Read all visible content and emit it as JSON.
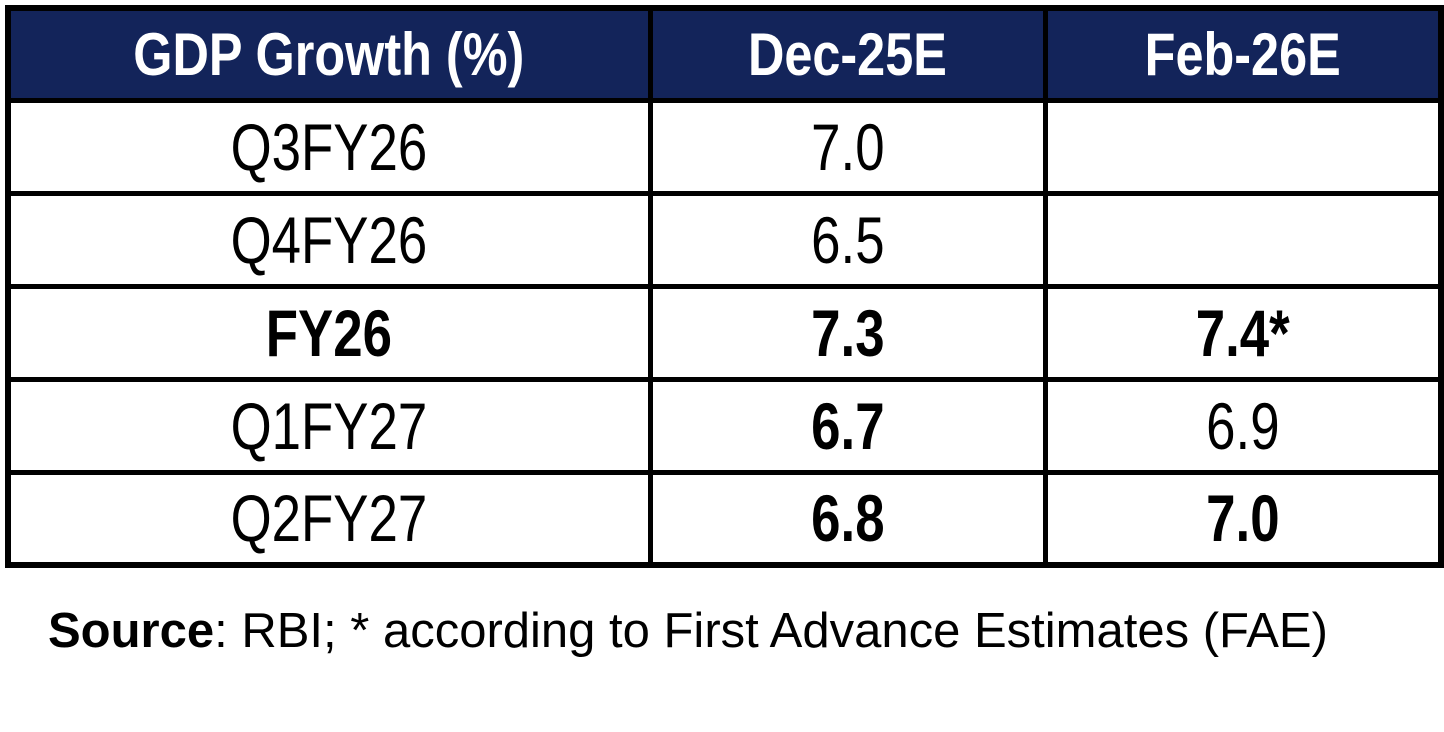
{
  "chart_data": {
    "type": "table",
    "title": "GDP Growth (%)",
    "columns": [
      "GDP Growth (%)",
      "Dec-25E",
      "Feb-26E"
    ],
    "rows": [
      [
        "Q3FY26",
        7.0,
        null
      ],
      [
        "Q4FY26",
        6.5,
        null
      ],
      [
        "FY26",
        7.3,
        "7.4*"
      ],
      [
        "Q1FY27",
        6.7,
        6.9
      ],
      [
        "Q2FY27",
        6.8,
        7.0
      ]
    ],
    "emphasis_bold_cells": [
      "FY26 row (all cells)",
      "Q1FY27 Dec-25E",
      "Q2FY27 Dec-25E",
      "Q2FY27 Feb-26E"
    ],
    "note": "Source: RBI; * according to First Advance Estimates (FAE)"
  },
  "table": {
    "headers": {
      "label": "GDP Growth (%)",
      "dec": "Dec-25E",
      "feb": "Feb-26E"
    },
    "rows": [
      {
        "label": "Q3FY26",
        "dec": "7.0",
        "feb": ""
      },
      {
        "label": "Q4FY26",
        "dec": "6.5",
        "feb": ""
      },
      {
        "label": "FY26",
        "dec": "7.3",
        "feb": "7.4*"
      },
      {
        "label": "Q1FY27",
        "dec": "6.7",
        "feb": "6.9"
      },
      {
        "label": "Q2FY27",
        "dec": "6.8",
        "feb": "7.0"
      }
    ]
  },
  "footer": {
    "source_label": "Source",
    "source_rest": ": RBI; * according to First Advance Estimates (FAE)"
  },
  "colors": {
    "header_bg": "#13245A",
    "header_text": "#ffffff",
    "border": "#000000",
    "body_text": "#000000"
  }
}
